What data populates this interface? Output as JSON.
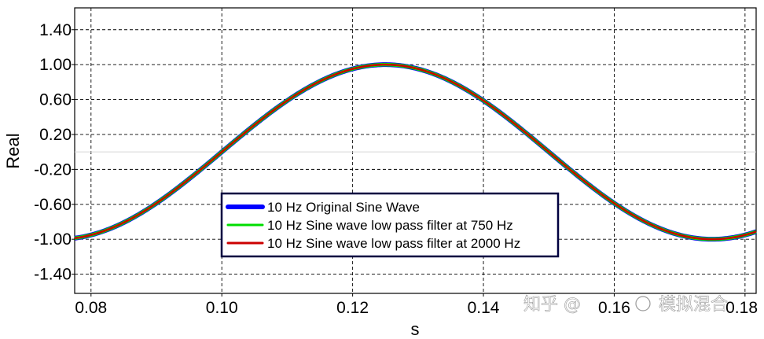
{
  "chart_data": {
    "type": "line",
    "title": "",
    "xlabel": "s",
    "ylabel": "Real",
    "xlim": [
      0.0775,
      0.1817
    ],
    "ylim": [
      -1.62,
      1.65
    ],
    "x_ticks": [
      0.08,
      0.1,
      0.12,
      0.14,
      0.16,
      0.18
    ],
    "x_tick_labels": [
      "0.08",
      "0.10",
      "0.12",
      "0.14",
      "0.16",
      "0.18"
    ],
    "y_ticks": [
      1.4,
      1.0,
      0.6,
      0.2,
      -0.2,
      -0.6,
      -1.0,
      -1.4
    ],
    "y_tick_labels": [
      "1.40",
      "1.00",
      "0.60",
      "0.20",
      "-0.20",
      "-0.60",
      "-1.00",
      "-1.40"
    ],
    "grid": true,
    "legend_position": "center-left",
    "signal": {
      "frequency_hz": 10,
      "amplitude": 1.0,
      "peak_at_s": 0.125
    },
    "series": [
      {
        "name": "10 Hz Original Sine Wave",
        "color": "#0000ff",
        "frequency_hz": 10,
        "amplitude": 1.0
      },
      {
        "name": "10 Hz Sine wave low pass filter at 750 Hz",
        "color": "#00dd00",
        "frequency_hz": 10,
        "amplitude": 1.0
      },
      {
        "name": "10 Hz Sine wave low pass filter at 2000 Hz",
        "color": "#cc0000",
        "frequency_hz": 10,
        "amplitude": 1.0
      }
    ]
  },
  "watermark": {
    "text_left": "知乎 @",
    "text_right": "模拟混合"
  }
}
